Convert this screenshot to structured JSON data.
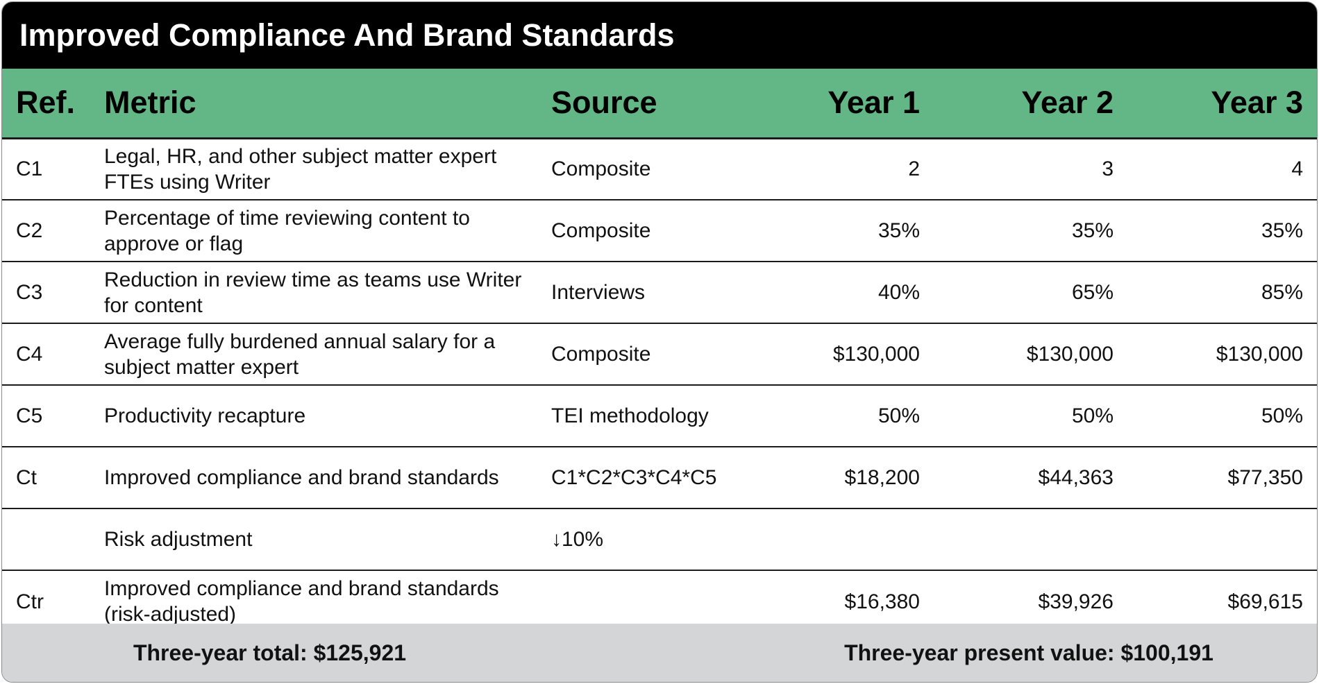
{
  "title": "Improved Compliance And Brand Standards",
  "columns": [
    "Ref.",
    "Metric",
    "Source",
    "Year 1",
    "Year 2",
    "Year 3"
  ],
  "rows": [
    {
      "ref": "C1",
      "metric": "Legal, HR, and other subject matter expert FTEs using Writer",
      "source": "Composite",
      "y1": "2",
      "y2": "3",
      "y3": "4"
    },
    {
      "ref": "C2",
      "metric": "Percentage of time reviewing content to approve or flag",
      "source": "Composite",
      "y1": "35%",
      "y2": "35%",
      "y3": "35%"
    },
    {
      "ref": "C3",
      "metric": "Reduction in review time as teams use Writer for content",
      "source": "Interviews",
      "y1": "40%",
      "y2": "65%",
      "y3": "85%"
    },
    {
      "ref": "C4",
      "metric": "Average fully burdened annual salary for a subject matter expert",
      "source": "Composite",
      "y1": "$130,000",
      "y2": "$130,000",
      "y3": "$130,000"
    },
    {
      "ref": "C5",
      "metric": "Productivity recapture",
      "source": "TEI methodology",
      "y1": "50%",
      "y2": "50%",
      "y3": "50%"
    },
    {
      "ref": "Ct",
      "metric": "Improved compliance and brand standards",
      "source": "C1*C2*C3*C4*C5",
      "y1": "$18,200",
      "y2": "$44,363",
      "y3": "$77,350"
    },
    {
      "ref": "",
      "metric": "Risk adjustment",
      "source": "↓10%",
      "y1": "",
      "y2": "",
      "y3": ""
    },
    {
      "ref": "Ctr",
      "metric": "Improved compliance and brand standards (risk-adjusted)",
      "source": "",
      "y1": "$16,380",
      "y2": "$39,926",
      "y3": "$69,615"
    }
  ],
  "footer": {
    "total": "Three-year total: $125,921",
    "present_value": "Three-year present value: $100,191"
  },
  "colors": {
    "title_bg": "#000000",
    "header_bg": "#63b685",
    "footer_bg": "#d4d5d6"
  }
}
